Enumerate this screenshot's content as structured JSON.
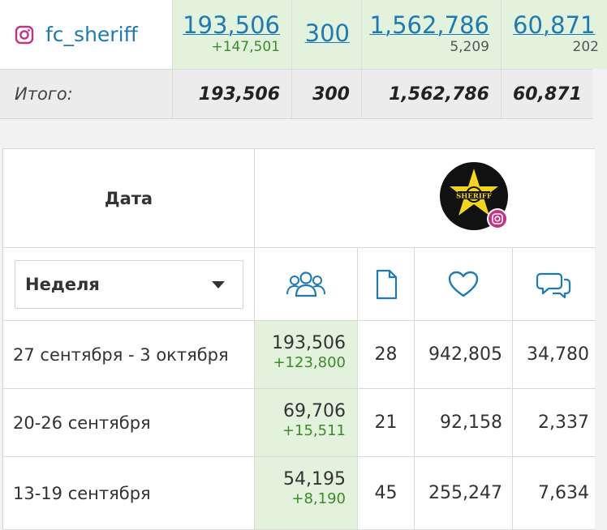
{
  "summary": {
    "account": {
      "name": "fc_sheriff",
      "followers": "193,506",
      "followers_delta": "+147,501",
      "posts": "300",
      "likes": "1,562,786",
      "likes_avg": "5,209",
      "comments": "60,871",
      "comments_avg": "202"
    },
    "totals": {
      "label": "Итого:",
      "followers": "193,506",
      "posts": "300",
      "likes": "1,562,786",
      "comments": "60,871"
    }
  },
  "table": {
    "date_header": "Дата",
    "period_select": {
      "value": "Неделя"
    },
    "column_icons": [
      "people-icon",
      "document-icon",
      "heart-icon",
      "comments-icon"
    ],
    "rows": [
      {
        "period": "27 сентября - 3 октября",
        "followers": "193,506",
        "followers_delta": "+123,800",
        "posts": "28",
        "likes": "942,805",
        "comments": "34,780"
      },
      {
        "period": "20-26 сентября",
        "followers": "69,706",
        "followers_delta": "+15,511",
        "posts": "21",
        "likes": "92,158",
        "comments": "2,337"
      },
      {
        "period": "13-19 сентября",
        "followers": "54,195",
        "followers_delta": "+8,190",
        "posts": "45",
        "likes": "255,247",
        "comments": "7,634"
      }
    ]
  },
  "colors": {
    "link": "#1f7ab3",
    "positive": "#3c8a2a",
    "highlight": "#e3f2dc",
    "instagram": "#c13584"
  }
}
